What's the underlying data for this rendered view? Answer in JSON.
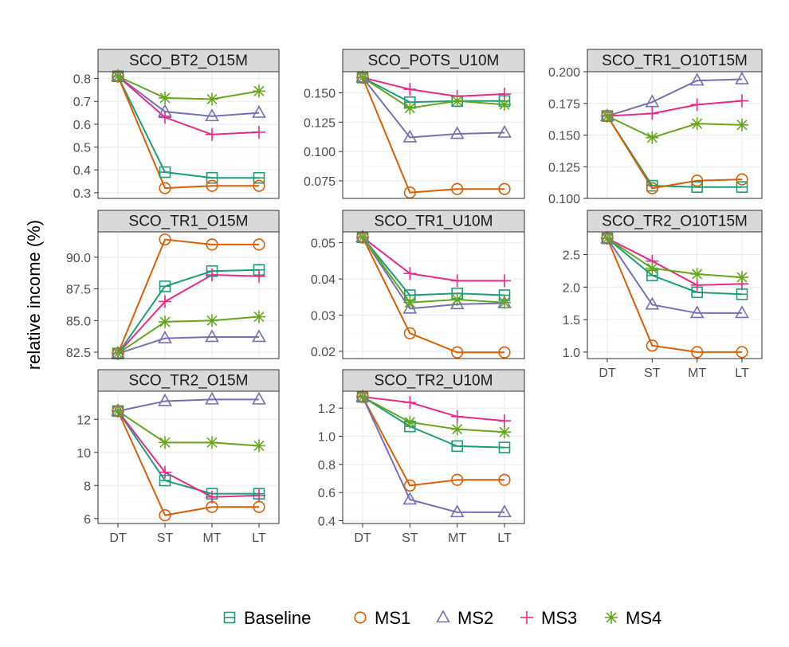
{
  "chart_data": {
    "type": "line",
    "facets": true,
    "ylabel": "relative income (%)",
    "xlabel": "",
    "x": [
      "DT",
      "ST",
      "MT",
      "LT"
    ],
    "legend": {
      "position": "bottom",
      "entries": [
        {
          "name": "Baseline",
          "color": "#1b9e77",
          "marker": "square"
        },
        {
          "name": "MS1",
          "color": "#d95f02",
          "marker": "circle"
        },
        {
          "name": "MS2",
          "color": "#7570b3",
          "marker": "triangle"
        },
        {
          "name": "MS3",
          "color": "#e7298a",
          "marker": "plus"
        },
        {
          "name": "MS4",
          "color": "#66a61e",
          "marker": "asterisk"
        }
      ]
    },
    "grid": true,
    "panels": [
      {
        "title": "SCO_BT2_O15M",
        "ylim": [
          0.275,
          0.83
        ],
        "yticks": [
          0.3,
          0.4,
          0.5,
          0.6,
          0.7,
          0.8
        ],
        "yticklabels": [
          "0.3",
          "0.4",
          "0.5",
          "0.6",
          "0.7",
          "0.8"
        ],
        "show_x": false,
        "series": {
          "Baseline": [
            0.81,
            0.39,
            0.365,
            0.365
          ],
          "MS1": [
            0.81,
            0.32,
            0.33,
            0.33
          ],
          "MS2": [
            0.81,
            0.655,
            0.635,
            0.65
          ],
          "MS3": [
            0.81,
            0.63,
            0.555,
            0.565
          ],
          "MS4": [
            0.81,
            0.715,
            0.71,
            0.745
          ]
        }
      },
      {
        "title": "SCO_POTS_U10M",
        "ylim": [
          0.06,
          0.168
        ],
        "yticks": [
          0.075,
          0.1,
          0.125,
          0.15
        ],
        "yticklabels": [
          "0.075",
          "0.100",
          "0.125",
          "0.150"
        ],
        "show_x": false,
        "series": {
          "Baseline": [
            0.163,
            0.142,
            0.143,
            0.143
          ],
          "MS1": [
            0.163,
            0.065,
            0.068,
            0.068
          ],
          "MS2": [
            0.163,
            0.112,
            0.115,
            0.116
          ],
          "MS3": [
            0.163,
            0.153,
            0.147,
            0.149
          ],
          "MS4": [
            0.163,
            0.137,
            0.143,
            0.14
          ]
        }
      },
      {
        "title": "SCO_TR1_O10T15M",
        "ylim": [
          0.1,
          0.2
        ],
        "yticks": [
          0.1,
          0.125,
          0.15,
          0.175,
          0.2
        ],
        "yticklabels": [
          "0.100",
          "0.125",
          "0.150",
          "0.175",
          "0.200"
        ],
        "show_x": false,
        "series": {
          "Baseline": [
            0.165,
            0.11,
            0.109,
            0.109
          ],
          "MS1": [
            0.165,
            0.108,
            0.114,
            0.115
          ],
          "MS2": [
            0.165,
            0.176,
            0.193,
            0.194
          ],
          "MS3": [
            0.165,
            0.167,
            0.174,
            0.177
          ],
          "MS4": [
            0.165,
            0.148,
            0.159,
            0.158
          ]
        }
      },
      {
        "title": "SCO_TR1_O15M",
        "ylim": [
          82.0,
          92.0
        ],
        "yticks": [
          82.5,
          85.0,
          87.5,
          90.0
        ],
        "yticklabels": [
          "82.5",
          "85.0",
          "87.5",
          "90.0"
        ],
        "show_x": false,
        "series": {
          "Baseline": [
            82.4,
            87.7,
            88.9,
            89.0
          ],
          "MS1": [
            82.4,
            91.4,
            91.0,
            91.0
          ],
          "MS2": [
            82.4,
            83.6,
            83.7,
            83.7
          ],
          "MS3": [
            82.4,
            86.5,
            88.6,
            88.5
          ],
          "MS4": [
            82.4,
            84.9,
            85.0,
            85.3
          ]
        }
      },
      {
        "title": "SCO_TR1_U10M",
        "ylim": [
          0.018,
          0.053
        ],
        "yticks": [
          0.02,
          0.03,
          0.04,
          0.05
        ],
        "yticklabels": [
          "0.02",
          "0.03",
          "0.04",
          "0.05"
        ],
        "show_x": false,
        "series": {
          "Baseline": [
            0.0515,
            0.0355,
            0.036,
            0.0355
          ],
          "MS1": [
            0.0515,
            0.025,
            0.0197,
            0.0197
          ],
          "MS2": [
            0.0515,
            0.0318,
            0.033,
            0.0333
          ],
          "MS3": [
            0.0515,
            0.0415,
            0.0395,
            0.0395
          ],
          "MS4": [
            0.0515,
            0.0335,
            0.0343,
            0.0335
          ]
        }
      },
      {
        "title": "SCO_TR2_O10T15M",
        "ylim": [
          0.9,
          2.85
        ],
        "yticks": [
          1.0,
          1.5,
          2.0,
          2.5
        ],
        "yticklabels": [
          "1.0",
          "1.5",
          "2.0",
          "2.5"
        ],
        "show_x": true,
        "series": {
          "Baseline": [
            2.75,
            2.18,
            1.92,
            1.89
          ],
          "MS1": [
            2.75,
            1.1,
            1.0,
            1.0
          ],
          "MS2": [
            2.75,
            1.73,
            1.6,
            1.6
          ],
          "MS3": [
            2.75,
            2.4,
            2.03,
            2.05
          ],
          "MS4": [
            2.75,
            2.29,
            2.2,
            2.15
          ]
        }
      },
      {
        "title": "SCO_TR2_O15M",
        "ylim": [
          5.7,
          13.7
        ],
        "yticks": [
          6,
          8,
          10,
          12
        ],
        "yticklabels": [
          "6",
          "8",
          "10",
          "12"
        ],
        "show_x": true,
        "series": {
          "Baseline": [
            12.5,
            8.3,
            7.5,
            7.5
          ],
          "MS1": [
            12.5,
            6.2,
            6.7,
            6.7
          ],
          "MS2": [
            12.5,
            13.1,
            13.2,
            13.2
          ],
          "MS3": [
            12.5,
            8.8,
            7.3,
            7.4
          ],
          "MS4": [
            12.5,
            10.6,
            10.6,
            10.4
          ]
        }
      },
      {
        "title": "SCO_TR2_U10M",
        "ylim": [
          0.38,
          1.32
        ],
        "yticks": [
          0.4,
          0.6,
          0.8,
          1.0,
          1.2
        ],
        "yticklabels": [
          "0.4",
          "0.6",
          "0.8",
          "1.0",
          "1.2"
        ],
        "show_x": true,
        "series": {
          "Baseline": [
            1.28,
            1.07,
            0.93,
            0.92
          ],
          "MS1": [
            1.28,
            0.65,
            0.69,
            0.69
          ],
          "MS2": [
            1.28,
            0.55,
            0.46,
            0.46
          ],
          "MS3": [
            1.28,
            1.24,
            1.14,
            1.11
          ],
          "MS4": [
            1.28,
            1.1,
            1.05,
            1.03
          ]
        }
      }
    ]
  }
}
